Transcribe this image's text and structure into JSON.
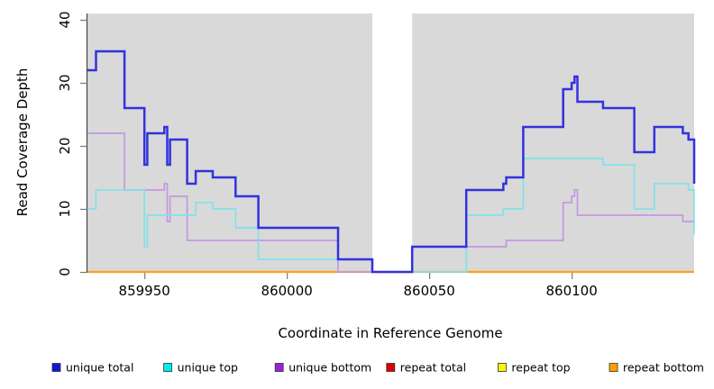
{
  "axes": {
    "xlabel": "Coordinate in Reference Genome",
    "ylabel": "Read Coverage Depth"
  },
  "chart_data": {
    "type": "line",
    "subtype": "step",
    "title": "",
    "xlabel": "Coordinate in Reference Genome",
    "ylabel": "Read Coverage Depth",
    "xlim": [
      859930,
      860143
    ],
    "ylim": [
      0,
      41
    ],
    "xticks": [
      859950,
      860000,
      860050,
      860100
    ],
    "yticks": [
      0,
      10,
      20,
      30,
      40
    ],
    "grid": false,
    "plot_bg_color": "#d9d9d9",
    "gap_band": [
      860030,
      860044
    ],
    "legend_position": "bottom",
    "legend": [
      {
        "label": "unique total",
        "color": "#1414d2"
      },
      {
        "label": "unique top",
        "color": "#00ecec"
      },
      {
        "label": "unique bottom",
        "color": "#9a22d6"
      },
      {
        "label": "repeat total",
        "color": "#e00000"
      },
      {
        "label": "repeat top",
        "color": "#f8f800"
      },
      {
        "label": "repeat bottom",
        "color": "#ff9e00"
      }
    ],
    "series": [
      {
        "name": "repeat total",
        "line_color": "#e03030",
        "line_width": 1.5,
        "points": [
          [
            859930,
            0
          ]
        ]
      },
      {
        "name": "repeat top",
        "line_color": "#f5f53c",
        "line_width": 1.5,
        "points": [
          [
            859930,
            0
          ]
        ]
      },
      {
        "name": "repeat bottom",
        "line_color": "#ffa216",
        "line_width": 2.2,
        "points": [
          [
            859930,
            0
          ]
        ]
      },
      {
        "name": "unique bottom",
        "line_color": "#c498e2",
        "line_width": 1.7,
        "points": [
          [
            859930,
            22
          ],
          [
            859943,
            13
          ],
          [
            859957,
            14
          ],
          [
            859958,
            8
          ],
          [
            859959,
            12
          ],
          [
            859965,
            5
          ],
          [
            860018,
            0
          ],
          [
            860044,
            4
          ],
          [
            860077,
            5
          ],
          [
            860097,
            11
          ],
          [
            860100,
            12
          ],
          [
            860101,
            13
          ],
          [
            860102,
            9
          ],
          [
            860139,
            8
          ]
        ]
      },
      {
        "name": "unique top",
        "line_color": "#82e2e8",
        "line_width": 1.7,
        "points": [
          [
            859930,
            10
          ],
          [
            859933,
            13
          ],
          [
            859950,
            4
          ],
          [
            859951,
            9
          ],
          [
            859968,
            11
          ],
          [
            859974,
            10
          ],
          [
            859982,
            7
          ],
          [
            859990,
            2
          ],
          [
            860030,
            0
          ],
          [
            860063,
            9
          ],
          [
            860076,
            10
          ],
          [
            860083,
            18
          ],
          [
            860111,
            17
          ],
          [
            860122,
            10
          ],
          [
            860129,
            14
          ],
          [
            860141,
            13
          ],
          [
            860143,
            6
          ]
        ]
      },
      {
        "name": "unique total",
        "line_color": "#3232df",
        "line_width": 2.5,
        "points": [
          [
            859930,
            32
          ],
          [
            859933,
            35
          ],
          [
            859943,
            26
          ],
          [
            859950,
            17
          ],
          [
            859951,
            22
          ],
          [
            859957,
            23
          ],
          [
            859958,
            17
          ],
          [
            859959,
            21
          ],
          [
            859965,
            14
          ],
          [
            859968,
            16
          ],
          [
            859974,
            15
          ],
          [
            859982,
            12
          ],
          [
            859990,
            7
          ],
          [
            860018,
            2
          ],
          [
            860030,
            0
          ],
          [
            860044,
            4
          ],
          [
            860063,
            13
          ],
          [
            860076,
            14
          ],
          [
            860077,
            15
          ],
          [
            860083,
            23
          ],
          [
            860097,
            29
          ],
          [
            860100,
            30
          ],
          [
            860101,
            31
          ],
          [
            860102,
            27
          ],
          [
            860111,
            26
          ],
          [
            860122,
            19
          ],
          [
            860129,
            23
          ],
          [
            860139,
            22
          ],
          [
            860141,
            21
          ],
          [
            860143,
            14
          ]
        ]
      }
    ]
  }
}
